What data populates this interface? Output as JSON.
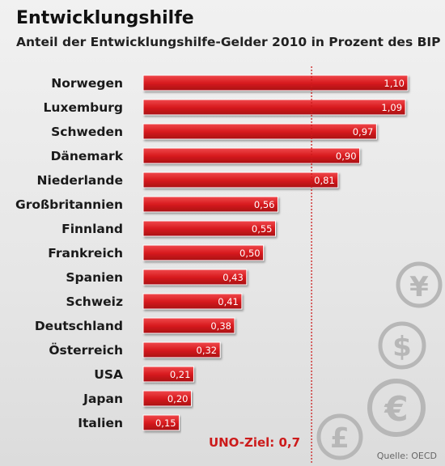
{
  "chart_data": {
    "type": "bar",
    "orientation": "horizontal",
    "title": "Entwicklungshilfe",
    "subtitle": "Anteil der Entwicklungshilfe-Gelder 2010 in Prozent des BIP",
    "categories": [
      "Norwegen",
      "Luxemburg",
      "Schweden",
      "Dänemark",
      "Niederlande",
      "Großbritannien",
      "Finnland",
      "Frankreich",
      "Spanien",
      "Schweiz",
      "Deutschland",
      "Österreich",
      "USA",
      "Japan",
      "Italien"
    ],
    "values": [
      1.1,
      1.09,
      0.97,
      0.9,
      0.81,
      0.56,
      0.55,
      0.5,
      0.43,
      0.41,
      0.38,
      0.32,
      0.21,
      0.2,
      0.15
    ],
    "value_labels": [
      "1,10",
      "1,09",
      "0,97",
      "0,90",
      "0,81",
      "0,56",
      "0,55",
      "0,50",
      "0,43",
      "0,41",
      "0,38",
      "0,32",
      "0,21",
      "0,20",
      "0,15"
    ],
    "reference_line": {
      "value": 0.7,
      "label": "UNO-Ziel: 0,7",
      "style": "dotted",
      "color": "#cc1b1b"
    },
    "xlim": [
      0,
      1.1
    ],
    "bar_color": "#d8191c",
    "grid": false
  },
  "source": "Quelle: OECD",
  "decor_icons": [
    "yen-icon",
    "dollar-icon",
    "euro-icon",
    "pound-icon"
  ],
  "decor_symbols": {
    "yen": "¥",
    "dollar": "$",
    "euro": "€",
    "pound": "£"
  }
}
